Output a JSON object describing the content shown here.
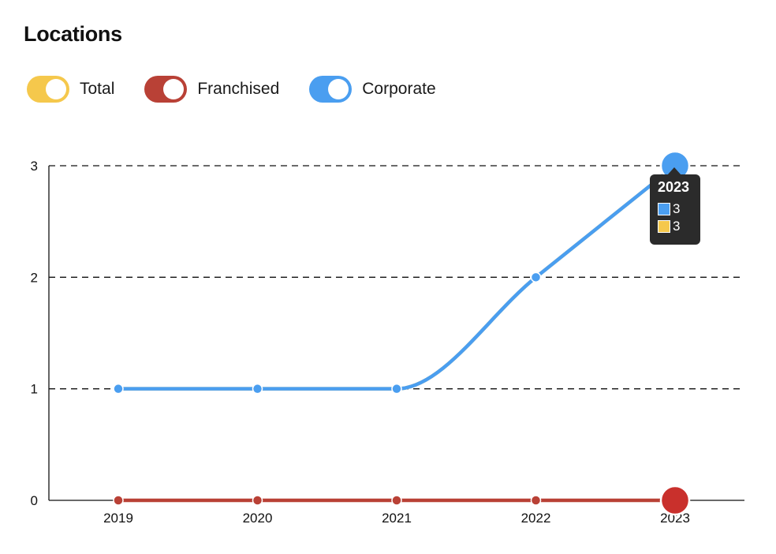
{
  "header": {
    "title": "Locations"
  },
  "legend": [
    {
      "label": "Total",
      "color": "#f5c84c",
      "on": true
    },
    {
      "label": "Franchised",
      "color": "#b94136",
      "on": true
    },
    {
      "label": "Corporate",
      "color": "#4a9ef0",
      "on": true
    }
  ],
  "tooltip": {
    "title": "2023",
    "rows": [
      {
        "value": "3",
        "color": "#4a9ef0"
      },
      {
        "value": "3",
        "color": "#f5c84c"
      }
    ]
  },
  "chart_data": {
    "type": "line",
    "categories": [
      "2019",
      "2020",
      "2021",
      "2022",
      "2023"
    ],
    "series": [
      {
        "name": "Total",
        "color": "#f5c84c",
        "values": [
          1,
          1,
          1,
          2,
          3
        ]
      },
      {
        "name": "Franchised",
        "color": "#b94136",
        "values": [
          0,
          0,
          0,
          0,
          0
        ]
      },
      {
        "name": "Corporate",
        "color": "#4a9ef0",
        "values": [
          1,
          1,
          1,
          2,
          3
        ]
      }
    ],
    "ylim": [
      0,
      3
    ],
    "yticks": [
      0,
      1,
      2,
      3
    ],
    "grid": "horizontal-dashed",
    "highlighted_category": "2023",
    "title": "",
    "xlabel": "",
    "ylabel": ""
  }
}
